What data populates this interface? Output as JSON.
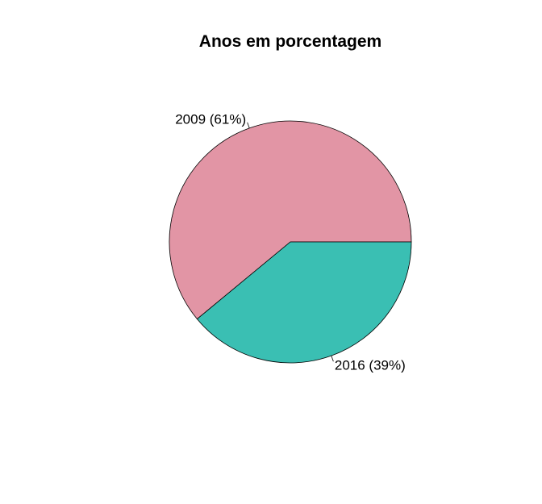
{
  "chart_data": {
    "type": "pie",
    "title": "Anos em porcentagem",
    "slices": [
      {
        "label": "2009 (61%)",
        "category": "2009",
        "value": 61,
        "color": "#E295A5"
      },
      {
        "label": "2016 (39%)",
        "category": "2016",
        "value": 39,
        "color": "#3ABFB3"
      }
    ],
    "start_angle": "3 o'clock, counter-clockwise",
    "legend": "none (labels on slices)"
  }
}
